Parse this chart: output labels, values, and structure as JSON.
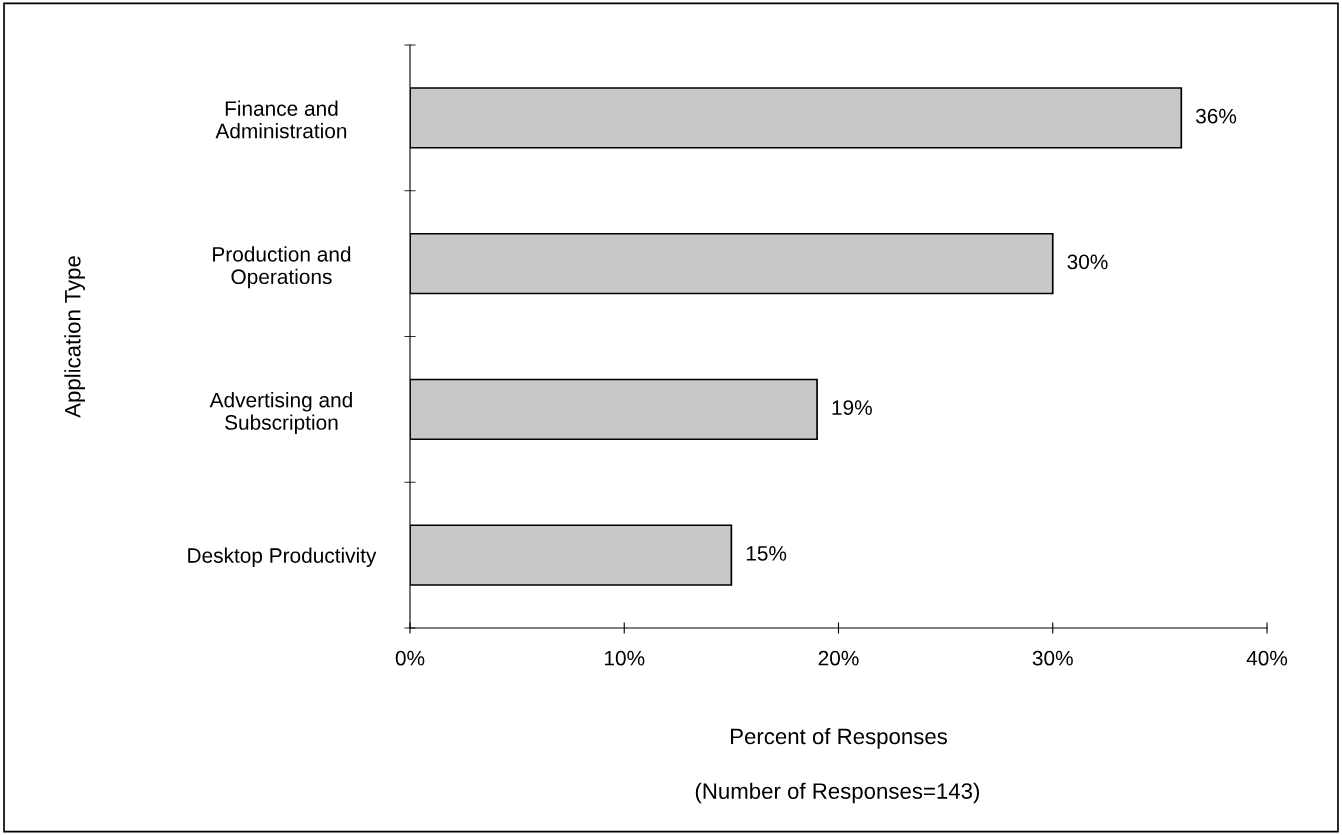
{
  "chart_data": {
    "type": "bar",
    "orientation": "horizontal",
    "ylabel": "Application Type",
    "xlabel": "Percent of Responses",
    "annotations": [
      "(Number of Responses=143)"
    ],
    "categories": [
      "Finance and\nAdministration",
      "Production and\nOperations",
      "Advertising and\nSubscription",
      "Desktop Productivity"
    ],
    "values": [
      36,
      30,
      19,
      15
    ],
    "value_labels": [
      "36%",
      "30%",
      "19%",
      "15%"
    ],
    "color": "#c8c8c8",
    "xlim": [
      0,
      40
    ],
    "xticks": [
      {
        "value": 0,
        "label": "0%"
      },
      {
        "value": 10,
        "label": "10%"
      },
      {
        "value": 20,
        "label": "20%"
      },
      {
        "value": 30,
        "label": "30%"
      },
      {
        "value": 40,
        "label": "40%"
      }
    ],
    "grid": false,
    "legend": false
  }
}
